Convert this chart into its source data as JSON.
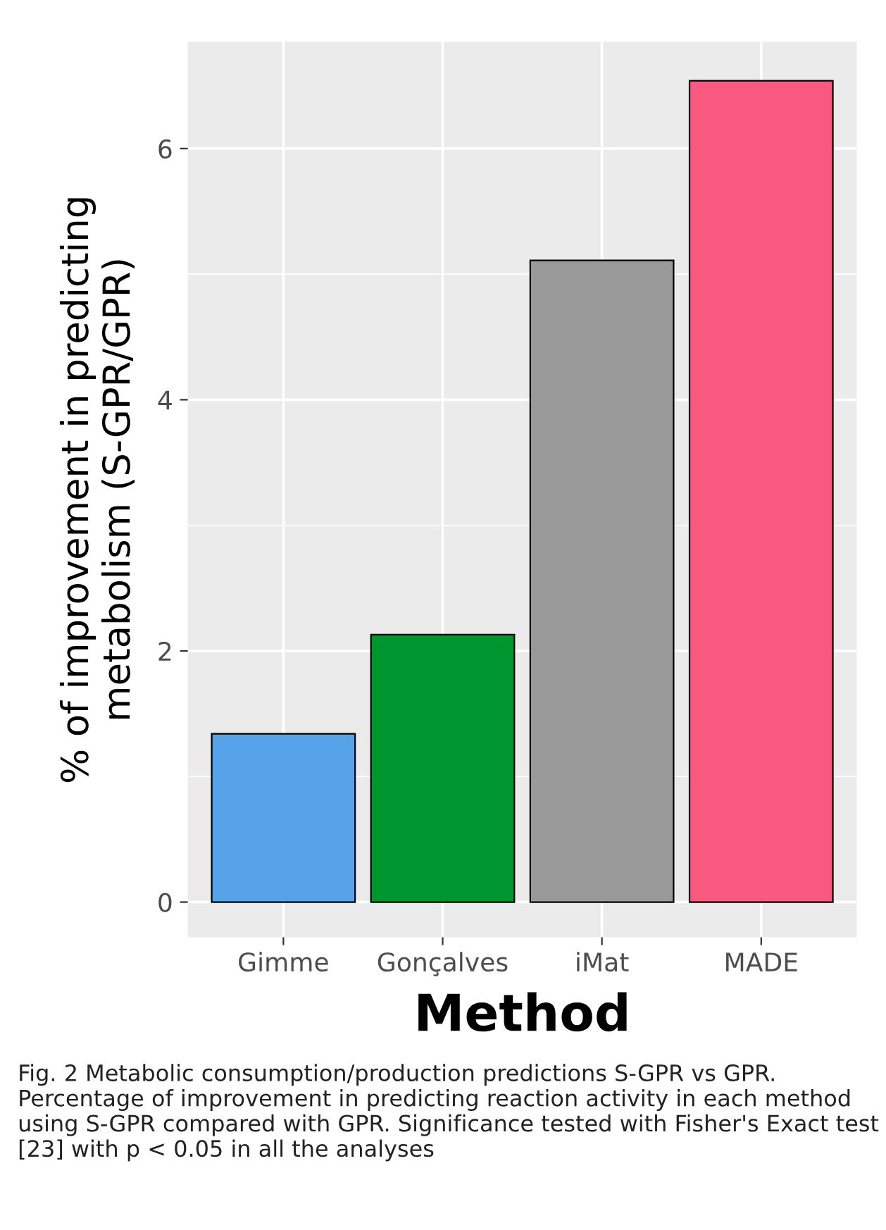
{
  "chart_data": {
    "type": "bar",
    "categories": [
      "Gimme",
      "Gonçalves",
      "iMat",
      "MADE"
    ],
    "values": [
      1.34,
      2.13,
      5.11,
      6.54
    ],
    "colors": [
      "#56a3e9",
      "#00962f",
      "#999999",
      "#f9587f"
    ],
    "xlabel": "Method",
    "ylabel": "% of improvement in predicting\nmetabolism (S-GPR/GPR)",
    "ylim": [
      -0.28,
      6.85
    ],
    "yticks": [
      0,
      2,
      4,
      6
    ],
    "grid": true,
    "legend": false,
    "annotations": [
      "Fig. 2 Metabolic consumption/production predictions S-GPR vs GPR. Percentage of improvement in predicting reaction activity in each method using S-GPR compared with GPR. Significance tested with Fisher's Exact test [23] with p < 0.05 in all the analyses"
    ]
  }
}
